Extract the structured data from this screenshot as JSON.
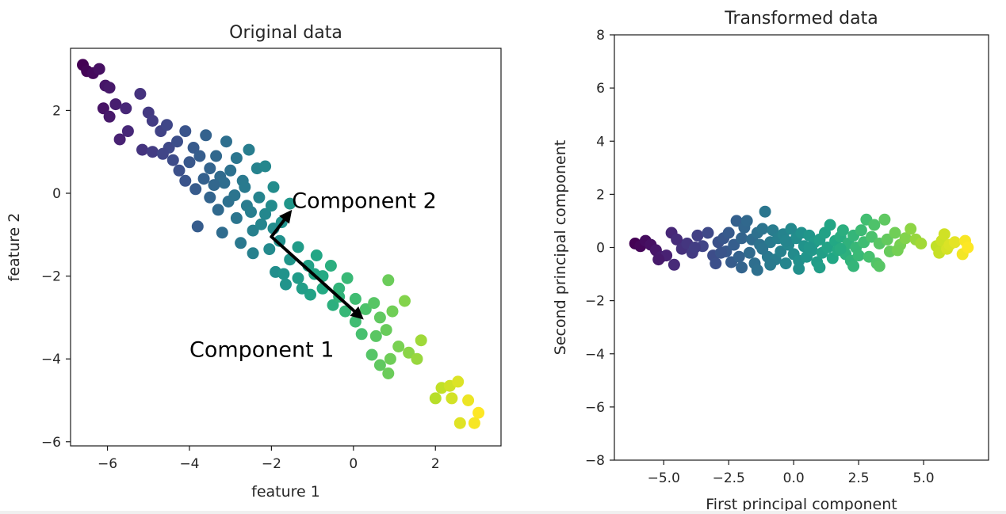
{
  "chart_data": [
    {
      "type": "scatter",
      "title": "Original data",
      "xlabel": "feature 1",
      "ylabel": "feature 2",
      "xlim": [
        -6.9,
        3.6
      ],
      "ylim": [
        -6.1,
        3.5
      ],
      "xticks": [
        -6,
        -4,
        -2,
        0,
        2
      ],
      "xtick_labels": [
        "−6",
        "−4",
        "−2",
        "0",
        "2"
      ],
      "yticks": [
        -6,
        -4,
        -2,
        0,
        2
      ],
      "ytick_labels": [
        "−6",
        "−4",
        "−2",
        "0",
        "2"
      ],
      "colormap": "viridis",
      "annotations": [
        {
          "text": "Component 1",
          "x": -4.0,
          "y": -3.95
        },
        {
          "text": "Component 2",
          "x": -1.5,
          "y": -0.35
        }
      ],
      "arrows": [
        {
          "from": [
            -2.0,
            -1.05
          ],
          "to": [
            0.25,
            -3.05
          ],
          "label": "Component 1"
        },
        {
          "from": [
            -2.0,
            -1.05
          ],
          "to": [
            -1.5,
            -0.4
          ],
          "label": "Component 2"
        }
      ],
      "points": [
        [
          -6.6,
          3.1
        ],
        [
          -6.5,
          2.95
        ],
        [
          -6.35,
          2.9
        ],
        [
          -6.2,
          3.0
        ],
        [
          -6.05,
          2.6
        ],
        [
          -5.95,
          2.55
        ],
        [
          -6.1,
          2.05
        ],
        [
          -5.95,
          1.85
        ],
        [
          -5.8,
          2.15
        ],
        [
          -5.55,
          2.05
        ],
        [
          -5.7,
          1.3
        ],
        [
          -5.5,
          1.5
        ],
        [
          -5.2,
          2.4
        ],
        [
          -5.0,
          1.95
        ],
        [
          -4.9,
          1.75
        ],
        [
          -5.15,
          1.05
        ],
        [
          -4.9,
          1.0
        ],
        [
          -4.7,
          1.5
        ],
        [
          -4.5,
          1.1
        ],
        [
          -4.55,
          1.65
        ],
        [
          -4.3,
          1.25
        ],
        [
          -4.1,
          1.5
        ],
        [
          -4.4,
          0.8
        ],
        [
          -4.0,
          0.75
        ],
        [
          -3.9,
          1.1
        ],
        [
          -3.75,
          0.9
        ],
        [
          -3.6,
          1.4
        ],
        [
          -3.5,
          0.6
        ],
        [
          -3.35,
          0.9
        ],
        [
          -3.1,
          1.25
        ],
        [
          -3.25,
          0.4
        ],
        [
          -3.0,
          0.55
        ],
        [
          -2.85,
          0.85
        ],
        [
          -2.7,
          0.3
        ],
        [
          -2.55,
          1.05
        ],
        [
          -2.35,
          0.6
        ],
        [
          -4.1,
          0.3
        ],
        [
          -3.85,
          0.1
        ],
        [
          -3.5,
          -0.1
        ],
        [
          -3.3,
          -0.4
        ],
        [
          -3.05,
          -0.2
        ],
        [
          -2.85,
          -0.6
        ],
        [
          -2.6,
          -0.3
        ],
        [
          -2.45,
          -0.9
        ],
        [
          -2.3,
          -0.1
        ],
        [
          -2.15,
          -0.5
        ],
        [
          -1.95,
          0.15
        ],
        [
          -1.75,
          -0.7
        ],
        [
          -1.55,
          -0.25
        ],
        [
          -3.8,
          -0.8
        ],
        [
          -3.2,
          -0.95
        ],
        [
          -2.75,
          -1.2
        ],
        [
          -2.45,
          -1.45
        ],
        [
          -2.05,
          -1.35
        ],
        [
          -1.8,
          -1.15
        ],
        [
          -1.55,
          -1.6
        ],
        [
          -1.35,
          -1.3
        ],
        [
          -1.1,
          -1.75
        ],
        [
          -0.9,
          -1.5
        ],
        [
          -0.75,
          -2.0
        ],
        [
          -0.55,
          -1.75
        ],
        [
          -0.35,
          -2.3
        ],
        [
          -0.15,
          -2.05
        ],
        [
          0.05,
          -2.55
        ],
        [
          -1.9,
          -1.9
        ],
        [
          -1.65,
          -2.2
        ],
        [
          -1.35,
          -2.05
        ],
        [
          -1.05,
          -2.45
        ],
        [
          -0.75,
          -2.3
        ],
        [
          -0.5,
          -2.7
        ],
        [
          -0.2,
          -2.85
        ],
        [
          0.05,
          -3.1
        ],
        [
          0.3,
          -2.8
        ],
        [
          0.5,
          -2.65
        ],
        [
          0.65,
          -3.0
        ],
        [
          0.85,
          -2.1
        ],
        [
          0.95,
          -2.85
        ],
        [
          1.25,
          -2.6
        ],
        [
          0.2,
          -3.4
        ],
        [
          0.55,
          -3.45
        ],
        [
          0.8,
          -3.3
        ],
        [
          1.1,
          -3.7
        ],
        [
          1.35,
          -3.85
        ],
        [
          1.65,
          -3.55
        ],
        [
          0.45,
          -3.9
        ],
        [
          0.65,
          -4.15
        ],
        [
          0.9,
          -4.0
        ],
        [
          0.85,
          -4.35
        ],
        [
          1.55,
          -4.0
        ],
        [
          -2.65,
          0.15
        ],
        [
          -2.9,
          -0.05
        ],
        [
          -3.15,
          0.25
        ],
        [
          -2.5,
          -0.45
        ],
        [
          -2.25,
          -0.75
        ],
        [
          -1.95,
          -0.85
        ],
        [
          -2.15,
          0.65
        ],
        [
          2.0,
          -4.95
        ],
        [
          2.15,
          -4.7
        ],
        [
          2.35,
          -4.65
        ],
        [
          2.55,
          -4.55
        ],
        [
          2.4,
          -4.95
        ],
        [
          2.8,
          -5.0
        ],
        [
          2.6,
          -5.55
        ],
        [
          2.95,
          -5.55
        ],
        [
          3.05,
          -5.3
        ],
        [
          -4.65,
          0.95
        ],
        [
          -4.25,
          0.55
        ],
        [
          -3.65,
          0.35
        ],
        [
          -3.4,
          0.2
        ],
        [
          -2.0,
          -0.3
        ],
        [
          -1.7,
          -1.95
        ],
        [
          -1.25,
          -2.3
        ],
        [
          -0.95,
          -1.95
        ],
        [
          -0.35,
          -2.5
        ]
      ]
    },
    {
      "type": "scatter",
      "title": "Transformed data",
      "xlabel": "First principal component",
      "ylabel": "Second principal component",
      "xlim": [
        -6.9,
        7.5
      ],
      "ylim": [
        -8,
        8
      ],
      "xticks": [
        -5.0,
        -2.5,
        0.0,
        2.5,
        5.0
      ],
      "xtick_labels": [
        "−5.0",
        "−2.5",
        "0.0",
        "2.5",
        "5.0"
      ],
      "yticks": [
        -8,
        -6,
        -4,
        -2,
        0,
        2,
        4,
        6,
        8
      ],
      "ytick_labels": [
        "−8",
        "−6",
        "−4",
        "−2",
        "0",
        "2",
        "4",
        "6",
        "8"
      ],
      "colormap": "viridis",
      "points": [
        [
          -6.1,
          0.15
        ],
        [
          -5.9,
          0.05
        ],
        [
          -5.7,
          0.25
        ],
        [
          -5.5,
          0.1
        ],
        [
          -5.3,
          -0.1
        ],
        [
          -5.1,
          -0.35
        ],
        [
          -4.9,
          -0.3
        ],
        [
          -4.7,
          0.55
        ],
        [
          -4.5,
          0.3
        ],
        [
          -4.3,
          -0.05
        ],
        [
          -4.1,
          0.15
        ],
        [
          -3.9,
          -0.2
        ],
        [
          -3.7,
          0.45
        ],
        [
          -3.5,
          0.05
        ],
        [
          -3.3,
          0.55
        ],
        [
          -3.1,
          -0.3
        ],
        [
          -2.9,
          0.2
        ],
        [
          -2.7,
          0.35
        ],
        [
          -2.6,
          -0.15
        ],
        [
          -2.5,
          0.55
        ],
        [
          -2.4,
          -0.55
        ],
        [
          -2.3,
          0.1
        ],
        [
          -2.2,
          1.0
        ],
        [
          -2.1,
          -0.35
        ],
        [
          -2.0,
          0.35
        ],
        [
          -1.9,
          0.75
        ],
        [
          -1.8,
          1.0
        ],
        [
          -1.7,
          -0.2
        ],
        [
          -1.6,
          0.3
        ],
        [
          -1.5,
          -0.6
        ],
        [
          -1.4,
          0.55
        ],
        [
          -1.3,
          0.1
        ],
        [
          -1.2,
          0.7
        ],
        [
          -1.1,
          1.35
        ],
        [
          -1.0,
          -0.35
        ],
        [
          -0.9,
          0.2
        ],
        [
          -0.8,
          0.65
        ],
        [
          -0.7,
          -0.45
        ],
        [
          -0.6,
          0.35
        ],
        [
          -0.5,
          -0.15
        ],
        [
          -0.4,
          0.5
        ],
        [
          -0.3,
          -0.6
        ],
        [
          -0.2,
          0.1
        ],
        [
          -0.1,
          0.7
        ],
        [
          0.0,
          -0.25
        ],
        [
          0.1,
          0.35
        ],
        [
          0.2,
          -0.5
        ],
        [
          0.3,
          0.55
        ],
        [
          0.4,
          0.05
        ],
        [
          0.5,
          -0.35
        ],
        [
          0.6,
          0.45
        ],
        [
          0.7,
          -0.1
        ],
        [
          0.8,
          0.2
        ],
        [
          0.9,
          -0.55
        ],
        [
          1.0,
          0.3
        ],
        [
          1.1,
          -0.2
        ],
        [
          1.2,
          0.55
        ],
        [
          1.3,
          0.0
        ],
        [
          1.4,
          0.85
        ],
        [
          1.5,
          -0.4
        ],
        [
          1.6,
          0.25
        ],
        [
          1.7,
          -0.1
        ],
        [
          1.8,
          0.4
        ],
        [
          1.9,
          0.65
        ],
        [
          2.0,
          -0.25
        ],
        [
          2.1,
          0.15
        ],
        [
          2.2,
          -0.5
        ],
        [
          2.3,
          0.45
        ],
        [
          2.4,
          0.0
        ],
        [
          2.5,
          -0.3
        ],
        [
          2.6,
          0.65
        ],
        [
          2.7,
          0.2
        ],
        [
          2.8,
          1.05
        ],
        [
          2.9,
          -0.35
        ],
        [
          3.0,
          0.4
        ],
        [
          3.1,
          0.85
        ],
        [
          3.2,
          -0.6
        ],
        [
          3.3,
          0.15
        ],
        [
          3.5,
          1.05
        ],
        [
          3.6,
          0.3
        ],
        [
          3.7,
          -0.15
        ],
        [
          3.9,
          0.55
        ],
        [
          4.1,
          0.1
        ],
        [
          4.3,
          0.35
        ],
        [
          4.5,
          0.7
        ],
        [
          4.7,
          0.3
        ],
        [
          4.9,
          0.15
        ],
        [
          5.5,
          0.05
        ],
        [
          5.6,
          -0.2
        ],
        [
          5.7,
          0.25
        ],
        [
          5.8,
          0.5
        ],
        [
          5.9,
          -0.05
        ],
        [
          6.0,
          0.1
        ],
        [
          6.2,
          0.2
        ],
        [
          6.5,
          -0.25
        ],
        [
          6.6,
          0.25
        ],
        [
          6.7,
          0.0
        ],
        [
          -5.2,
          -0.45
        ],
        [
          -4.6,
          -0.65
        ],
        [
          -3.0,
          -0.6
        ],
        [
          -2.0,
          -0.75
        ],
        [
          -1.4,
          -0.85
        ],
        [
          -0.9,
          -0.65
        ],
        [
          0.2,
          -0.8
        ],
        [
          1.0,
          -0.75
        ],
        [
          2.3,
          -0.7
        ],
        [
          3.3,
          -0.7
        ],
        [
          -3.8,
          0.0
        ],
        [
          -1.2,
          -0.05
        ],
        [
          0.6,
          0.0
        ],
        [
          1.8,
          -0.05
        ],
        [
          4.0,
          -0.1
        ],
        [
          -2.8,
          -0.2
        ],
        [
          -0.3,
          0.25
        ]
      ]
    }
  ]
}
